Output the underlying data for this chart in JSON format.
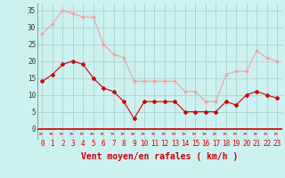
{
  "x": [
    0,
    1,
    2,
    3,
    4,
    5,
    6,
    7,
    8,
    9,
    10,
    11,
    12,
    13,
    14,
    15,
    16,
    17,
    18,
    19,
    20,
    21,
    22,
    23
  ],
  "wind_avg": [
    14,
    16,
    19,
    20,
    19,
    15,
    12,
    11,
    8,
    3,
    8,
    8,
    8,
    8,
    5,
    5,
    5,
    5,
    8,
    7,
    10,
    11,
    10,
    9
  ],
  "wind_gust": [
    28,
    31,
    35,
    34,
    33,
    33,
    25,
    22,
    21,
    14,
    14,
    14,
    14,
    14,
    11,
    11,
    8,
    8,
    16,
    17,
    17,
    23,
    21,
    20
  ],
  "avg_color": "#cc0000",
  "gust_color": "#f5a0a0",
  "bg_color": "#cdf0f0",
  "grid_color": "#aacaca",
  "ylabel_vals": [
    0,
    5,
    10,
    15,
    20,
    25,
    30,
    35
  ],
  "xlim": [
    0,
    23
  ],
  "ylim": [
    0,
    37
  ],
  "xlabel": "Vent moyen/en rafales ( km/h )",
  "axis_fontsize": 5.5,
  "xlabel_fontsize": 7.0
}
